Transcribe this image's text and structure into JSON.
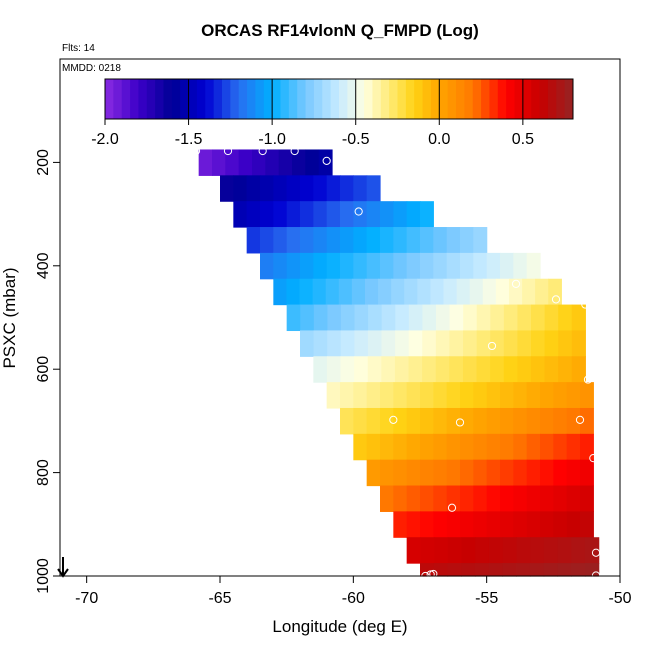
{
  "chart_data": {
    "type": "heatmap",
    "title": "ORCAS RF14vlonN Q_FMPD (Log)",
    "flights_note": "Flts: 14",
    "date_note": "MMDD: 0218",
    "xlabel": "Longitude (deg E)",
    "ylabel": "PSXC (mbar)",
    "xlim": [
      -71,
      -50
    ],
    "ylim": [
      1000,
      0
    ],
    "x_ticks": [
      -70,
      -65,
      -60,
      -55,
      -50
    ],
    "x_tick_labels": [
      "-70",
      "-65",
      "-60",
      "-55",
      "-50"
    ],
    "y_ticks": [
      200,
      400,
      600,
      800,
      1000
    ],
    "y_tick_labels": [
      "200",
      "400",
      "600",
      "800",
      "1000"
    ],
    "colorbar": {
      "range": [
        -2.0,
        0.8
      ],
      "ticks": [
        -2.0,
        -1.5,
        -1.0,
        -0.5,
        0.0,
        0.5
      ],
      "tick_labels": [
        "-2.0",
        "-1.5",
        "-1.0",
        "-0.5",
        "0.0",
        "0.5"
      ]
    },
    "rows": [
      {
        "p_top": 175,
        "p_bot": 225,
        "lon_start": -65.8,
        "lon_end": -60.8,
        "v_start": -1.92,
        "v_end": -1.55
      },
      {
        "p_top": 225,
        "p_bot": 275,
        "lon_start": -65.0,
        "lon_end": -59.0,
        "v_start": -1.62,
        "v_end": -1.25
      },
      {
        "p_top": 275,
        "p_bot": 325,
        "lon_start": -64.5,
        "lon_end": -57.0,
        "v_start": -1.5,
        "v_end": -0.98
      },
      {
        "p_top": 325,
        "p_bot": 375,
        "lon_start": -64.0,
        "lon_end": -55.0,
        "v_start": -1.3,
        "v_end": -0.72
      },
      {
        "p_top": 375,
        "p_bot": 425,
        "lon_start": -63.5,
        "lon_end": -53.0,
        "v_start": -1.15,
        "v_end": -0.48
      },
      {
        "p_top": 425,
        "p_bot": 475,
        "lon_start": -63.0,
        "lon_end": -52.2,
        "v_start": -1.05,
        "v_end": -0.3
      },
      {
        "p_top": 475,
        "p_bot": 525,
        "lon_start": -62.5,
        "lon_end": -51.3,
        "v_start": -0.9,
        "v_end": -0.12
      },
      {
        "p_top": 525,
        "p_bot": 575,
        "lon_start": -62.0,
        "lon_end": -51.3,
        "v_start": -0.7,
        "v_end": -0.08
      },
      {
        "p_top": 575,
        "p_bot": 625,
        "lon_start": -61.5,
        "lon_end": -51.3,
        "v_start": -0.52,
        "v_end": -0.02
      },
      {
        "p_top": 625,
        "p_bot": 675,
        "lon_start": -61.0,
        "lon_end": -51.0,
        "v_start": -0.4,
        "v_end": 0.08
      },
      {
        "p_top": 675,
        "p_bot": 725,
        "lon_start": -60.5,
        "lon_end": -51.0,
        "v_start": -0.25,
        "v_end": 0.22
      },
      {
        "p_top": 725,
        "p_bot": 775,
        "lon_start": -60.0,
        "lon_end": -51.0,
        "v_start": -0.12,
        "v_end": 0.35
      },
      {
        "p_top": 775,
        "p_bot": 825,
        "lon_start": -59.5,
        "lon_end": -51.0,
        "v_start": 0.05,
        "v_end": 0.45
      },
      {
        "p_top": 825,
        "p_bot": 875,
        "lon_start": -59.0,
        "lon_end": -51.0,
        "v_start": 0.2,
        "v_end": 0.55
      },
      {
        "p_top": 875,
        "p_bot": 925,
        "lon_start": -58.5,
        "lon_end": -51.0,
        "v_start": 0.35,
        "v_end": 0.62
      },
      {
        "p_top": 925,
        "p_bot": 975,
        "lon_start": -58.0,
        "lon_end": -50.8,
        "v_start": 0.55,
        "v_end": 0.72
      },
      {
        "p_top": 975,
        "p_bot": 1000,
        "lon_start": -57.5,
        "lon_end": -50.8,
        "v_start": 0.65,
        "v_end": 0.78
      }
    ],
    "points": [
      {
        "lon": -65.9,
        "p": 178
      },
      {
        "lon": -64.7,
        "p": 178
      },
      {
        "lon": -63.4,
        "p": 178
      },
      {
        "lon": -62.2,
        "p": 178
      },
      {
        "lon": -61.0,
        "p": 197
      },
      {
        "lon": -59.8,
        "p": 295
      },
      {
        "lon": -53.9,
        "p": 435
      },
      {
        "lon": -52.4,
        "p": 465
      },
      {
        "lon": -51.3,
        "p": 475
      },
      {
        "lon": -54.8,
        "p": 555
      },
      {
        "lon": -51.2,
        "p": 620
      },
      {
        "lon": -58.5,
        "p": 698
      },
      {
        "lon": -56.0,
        "p": 703
      },
      {
        "lon": -51.5,
        "p": 698
      },
      {
        "lon": -51.0,
        "p": 772
      },
      {
        "lon": -56.3,
        "p": 868
      },
      {
        "lon": -50.9,
        "p": 955
      },
      {
        "lon": -57.3,
        "p": 1000
      },
      {
        "lon": -57.1,
        "p": 997
      },
      {
        "lon": -57.0,
        "p": 996
      },
      {
        "lon": -50.9,
        "p": 999
      }
    ]
  }
}
